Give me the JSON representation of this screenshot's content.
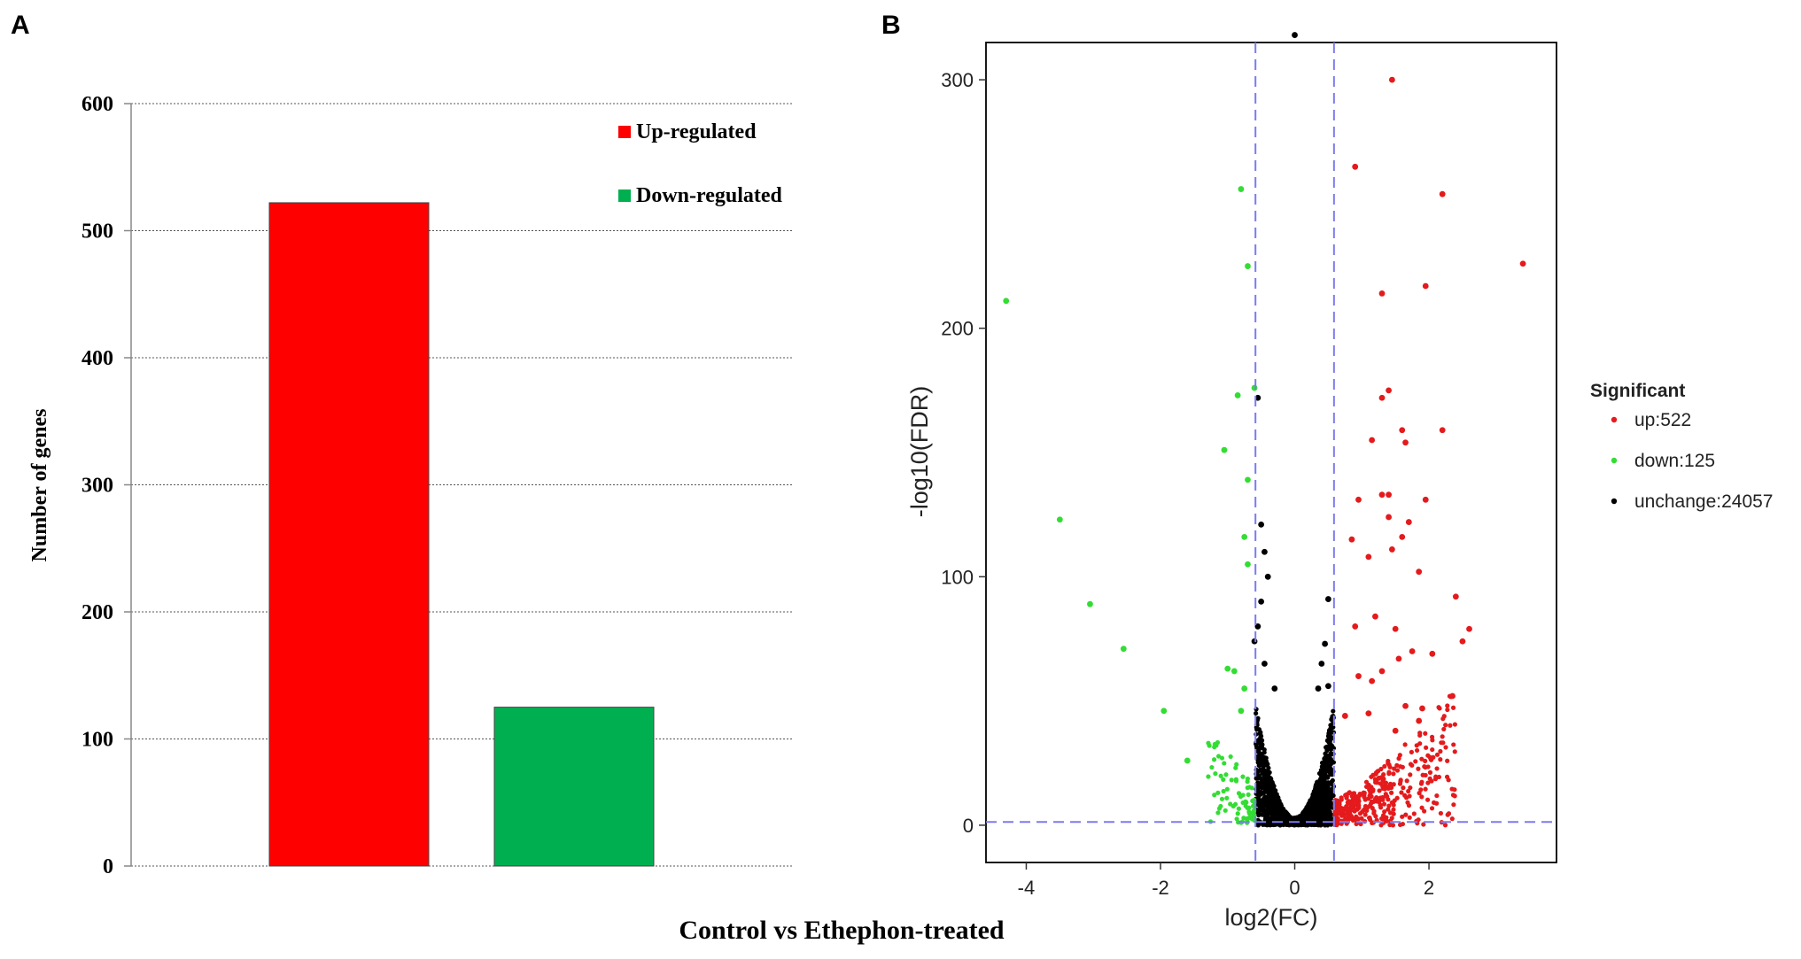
{
  "panels": {
    "a_label": "A",
    "b_label": "B"
  },
  "chart_data": [
    {
      "type": "bar",
      "categories": [
        "Up-regulated",
        "Down-regulated"
      ],
      "values": [
        522,
        125
      ],
      "colors": [
        "#ff0000",
        "#00b050"
      ],
      "xlabel": "Control vs Ethephon-treated",
      "ylabel": "Number of genes",
      "ylim": [
        0,
        600
      ],
      "yticks": [
        0,
        100,
        200,
        300,
        400,
        500,
        600
      ],
      "grid": "horizontal dotted",
      "legend": {
        "position": "top-right",
        "entries": [
          {
            "label": "Up-regulated",
            "color": "#ff0000"
          },
          {
            "label": "Down-regulated",
            "color": "#00b050"
          }
        ]
      }
    },
    {
      "type": "scatter",
      "xlabel": "log2(FC)",
      "ylabel": "-log10(FDR)",
      "xlim": [
        -4.6,
        3.9
      ],
      "ylim": [
        -15,
        315
      ],
      "xticks": [
        -4,
        -2,
        0,
        2
      ],
      "yticks": [
        0,
        100,
        200,
        300
      ],
      "thresholds": {
        "log2fc": [
          -0.585,
          0.585
        ],
        "neg_log10_fdr": 1.3
      },
      "legend": {
        "title": "Significant",
        "position": "right",
        "entries": [
          {
            "label": "up:522",
            "color": "#e41a1c"
          },
          {
            "label": "down:125",
            "color": "#33dd33"
          },
          {
            "label": "unchange:24057",
            "color": "#000000"
          }
        ]
      },
      "series": [
        {
          "name": "up",
          "color": "#e41a1c",
          "points": [
            [
              1.45,
              300
            ],
            [
              0.9,
              265
            ],
            [
              2.2,
              254
            ],
            [
              3.4,
              226
            ],
            [
              1.95,
              217
            ],
            [
              1.3,
              214
            ],
            [
              1.4,
              175
            ],
            [
              1.3,
              172
            ],
            [
              1.6,
              159
            ],
            [
              2.2,
              159
            ],
            [
              1.15,
              155
            ],
            [
              1.65,
              154
            ],
            [
              1.3,
              133
            ],
            [
              1.4,
              133
            ],
            [
              1.95,
              131
            ],
            [
              0.95,
              131
            ],
            [
              1.4,
              124
            ],
            [
              1.7,
              122
            ],
            [
              0.85,
              115
            ],
            [
              1.6,
              116
            ],
            [
              1.45,
              111
            ],
            [
              1.85,
              102
            ],
            [
              1.1,
              108
            ],
            [
              2.4,
              92
            ],
            [
              2.6,
              79
            ],
            [
              2.5,
              74
            ],
            [
              1.2,
              84
            ],
            [
              1.5,
              79
            ],
            [
              0.9,
              80
            ],
            [
              2.05,
              69
            ],
            [
              1.75,
              70
            ],
            [
              1.55,
              67
            ],
            [
              1.3,
              62
            ],
            [
              1.15,
              58
            ],
            [
              0.95,
              60
            ],
            [
              2.35,
              52
            ],
            [
              1.9,
              47
            ],
            [
              1.65,
              48
            ],
            [
              1.1,
              45
            ],
            [
              1.85,
              42
            ],
            [
              0.75,
              44
            ],
            [
              1.5,
              38
            ]
          ]
        },
        {
          "name": "down",
          "color": "#33dd33",
          "points": [
            [
              -4.3,
              211
            ],
            [
              -0.8,
              256
            ],
            [
              -0.7,
              225
            ],
            [
              -0.85,
              173
            ],
            [
              -0.6,
              176
            ],
            [
              -1.05,
              151
            ],
            [
              -0.7,
              139
            ],
            [
              -3.5,
              123
            ],
            [
              -0.75,
              116
            ],
            [
              -0.7,
              105
            ],
            [
              -3.05,
              89
            ],
            [
              -2.55,
              71
            ],
            [
              -0.9,
              62
            ],
            [
              -1.0,
              63
            ],
            [
              -0.75,
              55
            ],
            [
              -1.95,
              46
            ],
            [
              -1.6,
              26
            ],
            [
              -0.8,
              46
            ]
          ]
        },
        {
          "name": "unchange",
          "color": "#000000",
          "points": [
            [
              -0.55,
              172
            ],
            [
              0.0,
              318
            ],
            [
              -0.5,
              121
            ],
            [
              -0.45,
              110
            ],
            [
              -0.4,
              100
            ],
            [
              -0.5,
              90
            ],
            [
              -0.55,
              80
            ],
            [
              0.5,
              91
            ],
            [
              0.45,
              73
            ],
            [
              0.4,
              65
            ],
            [
              -0.6,
              74
            ],
            [
              -0.45,
              65
            ],
            [
              0.35,
              55
            ],
            [
              -0.3,
              55
            ],
            [
              0.5,
              56
            ]
          ]
        }
      ]
    }
  ]
}
